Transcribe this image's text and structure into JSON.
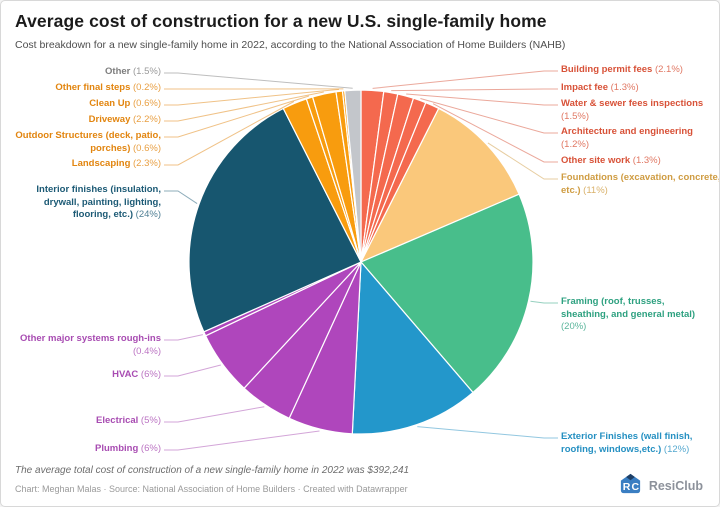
{
  "header": {
    "title": "Average cost of construction for a new U.S. single-family home",
    "subtitle": "Cost breakdown for a new single-family home in 2022, according to the National Association of Home Builders (NAHB)"
  },
  "footer": {
    "note": "The average total cost of construction of a new single-family home in 2022 was $392,241",
    "credits": "Chart: Meghan Malas · Source: National Association of Home Builders · Created with Datawrapper",
    "brand": "ResiClub"
  },
  "chart_data": {
    "type": "pie",
    "title": "Average cost of construction for a new U.S. single-family home",
    "unit": "%",
    "start_angle": "12 o'clock, clockwise",
    "slices": [
      {
        "label": "Building permit fees",
        "pct_text": "(2.1%)",
        "value": 2.1,
        "color": "#f4694e",
        "label_color": "#d85238"
      },
      {
        "label": "Impact fee",
        "pct_text": "(1.3%)",
        "value": 1.3,
        "color": "#f4694e",
        "label_color": "#d85238"
      },
      {
        "label": "Water & sewer fees inspections",
        "pct_text": "(1.5%)",
        "value": 1.5,
        "color": "#f4694e",
        "label_color": "#d85238"
      },
      {
        "label": "Architecture and engineering",
        "pct_text": "(1.2%)",
        "value": 1.2,
        "color": "#f4694e",
        "label_color": "#d85238"
      },
      {
        "label": "Other site work",
        "pct_text": "(1.3%)",
        "value": 1.3,
        "color": "#f4694e",
        "label_color": "#d85238"
      },
      {
        "label": "Foundations (excavation, concrete, etc.)",
        "pct_text": "(11%)",
        "value": 11,
        "color": "#fac87b",
        "label_color": "#cf9c42"
      },
      {
        "label": "Framing (roof, trusses, sheathing, and general metal)",
        "pct_text": "(20%)",
        "value": 20,
        "color": "#48be8b",
        "label_color": "#2ea180"
      },
      {
        "label": "Exterior Finishes (wall finish, roofing, windows,etc.)",
        "pct_text": "(12%)",
        "value": 12,
        "color": "#2397cb",
        "label_color": "#2590c2"
      },
      {
        "label": "Plumbing",
        "pct_text": "(6%)",
        "value": 6,
        "color": "#af46bc",
        "label_color": "#a84cb2"
      },
      {
        "label": "Electrical",
        "pct_text": "(5%)",
        "value": 5,
        "color": "#af46bc",
        "label_color": "#a84cb2"
      },
      {
        "label": "HVAC",
        "pct_text": "(6%)",
        "value": 6,
        "color": "#af46bc",
        "label_color": "#a84cb2"
      },
      {
        "label": "Other major systems rough-ins",
        "pct_text": "(0.4%)",
        "value": 0.4,
        "color": "#af46bc",
        "label_color": "#a84cb2"
      },
      {
        "label": "Interior finishes (insulation, drywall, painting, lighting, flooring, etc.)",
        "pct_text": "(24%)",
        "value": 24,
        "color": "#17566f",
        "label_color": "#1c5a75"
      },
      {
        "label": "Landscaping",
        "pct_text": "(2.3%)",
        "value": 2.3,
        "color": "#f89c0e",
        "label_color": "#e2850f"
      },
      {
        "label": "Outdoor Structures (deck, patio, porches)",
        "pct_text": "(0.6%)",
        "value": 0.6,
        "color": "#f89c0e",
        "label_color": "#e2850f"
      },
      {
        "label": "Driveway",
        "pct_text": "(2.2%)",
        "value": 2.2,
        "color": "#f89c0e",
        "label_color": "#e2850f"
      },
      {
        "label": "Clean Up",
        "pct_text": "(0.6%)",
        "value": 0.6,
        "color": "#f89c0e",
        "label_color": "#e2850f"
      },
      {
        "label": "Other final steps",
        "pct_text": "(0.2%)",
        "value": 0.2,
        "color": "#f89c0e",
        "label_color": "#e2850f"
      },
      {
        "label": "Other",
        "pct_text": "(1.5%)",
        "value": 1.5,
        "color": "#c3c6cb",
        "label_color": "#7d7d7d"
      }
    ]
  }
}
